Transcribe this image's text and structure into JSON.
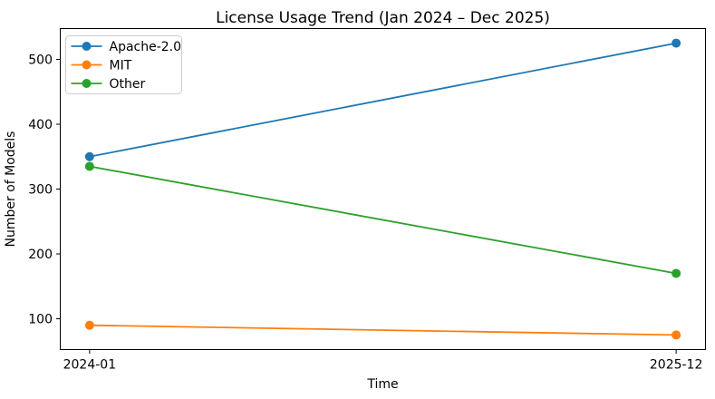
{
  "chart_data": {
    "type": "line",
    "title": "License Usage Trend (Jan 2024 – Dec 2025)",
    "xlabel": "Time",
    "ylabel": "Number of Models",
    "x_categories": [
      "2024-01",
      "2025-12"
    ],
    "series": [
      {
        "name": "Apache-2.0",
        "color": "#1f77b4",
        "values": [
          350,
          525
        ]
      },
      {
        "name": "MIT",
        "color": "#ff7f0e",
        "values": [
          90,
          75
        ]
      },
      {
        "name": "Other",
        "color": "#2ca02c",
        "values": [
          335,
          170
        ]
      }
    ],
    "yticks": [
      100,
      200,
      300,
      400,
      500
    ],
    "ylim": [
      52.5,
      547.5
    ],
    "xlim": [
      -0.05,
      1.05
    ],
    "marker": "o",
    "grid": false,
    "legend_position": "upper-left",
    "background_color": "#ffffff",
    "spine_color": "#000000",
    "legend_border_color": "#cccccc"
  }
}
